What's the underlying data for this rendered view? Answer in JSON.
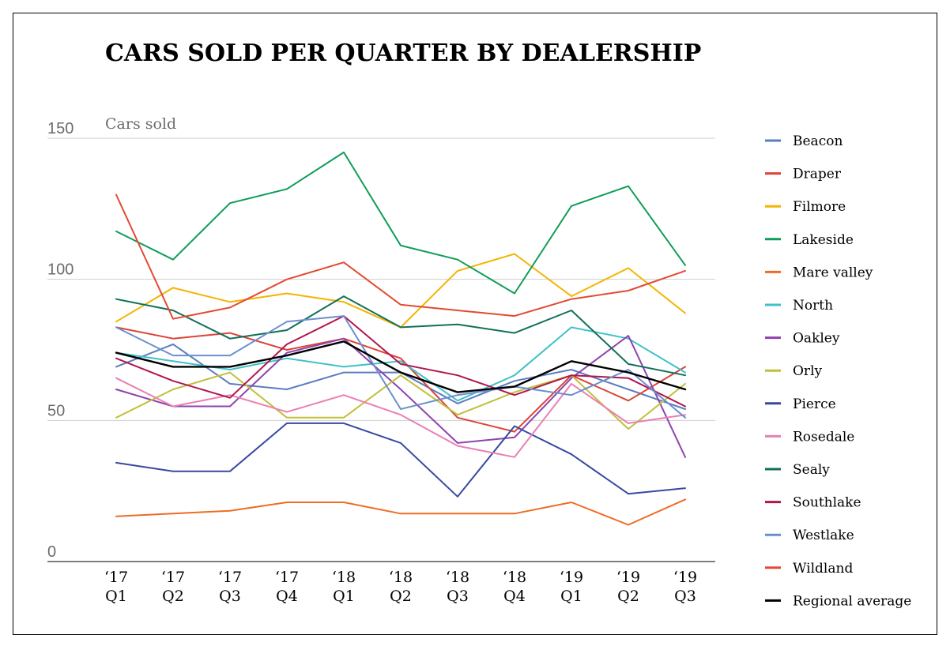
{
  "chart_data": {
    "type": "line",
    "title": "CARS SOLD PER QUARTER BY DEALERSHIP",
    "ylabel": "Cars sold",
    "ylim": [
      0,
      150
    ],
    "yticks": [
      0,
      50,
      100,
      150
    ],
    "grid": true,
    "legend_position": "right",
    "categories": [
      [
        "‘17",
        "Q1"
      ],
      [
        "‘17",
        "Q2"
      ],
      [
        "‘17",
        "Q3"
      ],
      [
        "‘17",
        "Q4"
      ],
      [
        "‘18",
        "Q1"
      ],
      [
        "‘18",
        "Q2"
      ],
      [
        "‘18",
        "Q3"
      ],
      [
        "‘18",
        "Q4"
      ],
      [
        "‘19",
        "Q1"
      ],
      [
        "‘19",
        "Q2"
      ],
      [
        "‘19",
        "Q3"
      ]
    ],
    "series": [
      {
        "name": "Beacon",
        "color": "#5b7dbe",
        "values": [
          69,
          77,
          63,
          61,
          67,
          67,
          56,
          64,
          68,
          61,
          54
        ]
      },
      {
        "name": "Draper",
        "color": "#db4437",
        "values": [
          83,
          79,
          81,
          75,
          79,
          72,
          51,
          46,
          66,
          57,
          69
        ]
      },
      {
        "name": "Filmore",
        "color": "#f4b400",
        "values": [
          85,
          97,
          92,
          95,
          92,
          83,
          103,
          109,
          94,
          104,
          88
        ]
      },
      {
        "name": "Lakeside",
        "color": "#0f9d58",
        "values": [
          117,
          107,
          127,
          132,
          145,
          112,
          107,
          95,
          126,
          133,
          105
        ]
      },
      {
        "name": "Mare valley",
        "color": "#ee6c24",
        "values": [
          16,
          17,
          18,
          21,
          21,
          17,
          17,
          17,
          21,
          13,
          22
        ]
      },
      {
        "name": "North",
        "color": "#3fc1c9",
        "values": [
          74,
          71,
          68,
          72,
          69,
          71,
          57,
          66,
          83,
          79,
          67
        ]
      },
      {
        "name": "Oakley",
        "color": "#8e44ad",
        "values": [
          61,
          55,
          55,
          74,
          79,
          61,
          42,
          44,
          65,
          80,
          37
        ]
      },
      {
        "name": "Orly",
        "color": "#c0c03a",
        "values": [
          51,
          61,
          67,
          51,
          51,
          66,
          52,
          60,
          66,
          47,
          63
        ]
      },
      {
        "name": "Pierce",
        "color": "#3949a0",
        "values": [
          35,
          32,
          32,
          49,
          49,
          42,
          23,
          48,
          38,
          24,
          26
        ]
      },
      {
        "name": "Rosedale",
        "color": "#ea7fb4",
        "values": [
          65,
          55,
          59,
          53,
          59,
          52,
          41,
          37,
          63,
          49,
          52
        ]
      },
      {
        "name": "Sealy",
        "color": "#12705a",
        "values": [
          93,
          89,
          79,
          82,
          94,
          83,
          84,
          81,
          89,
          70,
          66
        ]
      },
      {
        "name": "Southlake",
        "color": "#b0174f",
        "values": [
          72,
          64,
          58,
          77,
          87,
          70,
          66,
          59,
          66,
          65,
          55
        ]
      },
      {
        "name": "Westlake",
        "color": "#6a8fd0",
        "values": [
          83,
          73,
          73,
          85,
          87,
          54,
          59,
          62,
          59,
          68,
          51
        ]
      },
      {
        "name": "Wildland",
        "color": "#e24a33",
        "values": [
          130,
          86,
          90,
          100,
          106,
          91,
          89,
          87,
          93,
          96,
          103
        ]
      },
      {
        "name": "Regional average",
        "color": "#000000",
        "values": [
          74,
          69,
          69,
          73,
          78,
          67,
          60,
          62,
          71,
          67,
          61
        ]
      }
    ]
  }
}
